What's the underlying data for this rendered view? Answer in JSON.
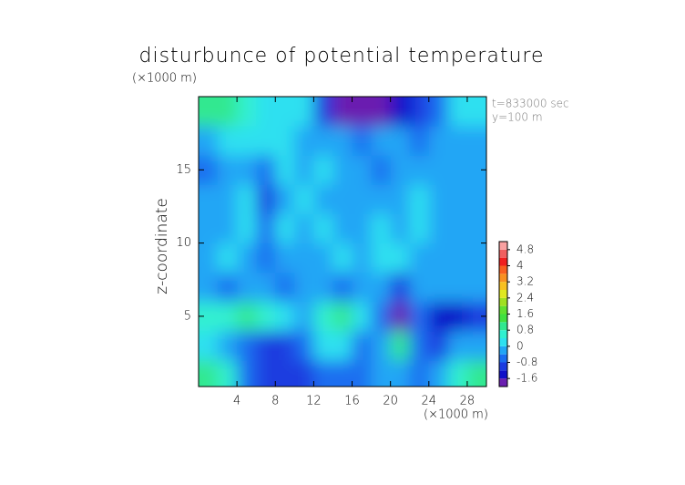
{
  "chart_data": {
    "type": "heatmap",
    "title": "disturbunce of potential temperature",
    "y_unit": "(×1000 m)",
    "x_unit": "(×1000 m)",
    "ylabel": "z-coordinate",
    "annotations": [
      "t=833000 sec",
      "y=100 m"
    ],
    "xlim": [
      0,
      30
    ],
    "ylim": [
      0.2,
      20
    ],
    "xticks": [
      4,
      8,
      12,
      16,
      20,
      24,
      28
    ],
    "yticks": [
      5,
      10,
      15
    ],
    "x": [
      1,
      3,
      5,
      7,
      9,
      11,
      13,
      15,
      17,
      19,
      21,
      23,
      25,
      27,
      29
    ],
    "y": [
      1,
      3,
      5,
      7,
      9,
      11,
      13,
      15,
      17,
      19
    ],
    "z": [
      [
        0.9,
        0.5,
        -0.6,
        -0.9,
        -1.0,
        -1.0,
        -0.6,
        -0.5,
        -0.7,
        -0.4,
        -0.2,
        -0.5,
        -0.4,
        0.6,
        0.9
      ],
      [
        0.2,
        -0.4,
        -0.5,
        -0.8,
        -0.9,
        -0.6,
        0.3,
        0.2,
        -0.5,
        -0.3,
        0.9,
        -0.6,
        -1.2,
        -0.3,
        -0.2
      ],
      [
        0.6,
        0.7,
        0.9,
        0.6,
        0.1,
        -0.3,
        0.5,
        1.0,
        0.2,
        -0.5,
        -1.6,
        -0.6,
        -1.5,
        -1.4,
        -0.8
      ],
      [
        -0.4,
        -0.6,
        -0.3,
        -0.1,
        -0.6,
        -0.4,
        -0.2,
        -0.5,
        -0.3,
        -0.2,
        -1.0,
        -0.3,
        -0.3,
        -0.4,
        -0.4
      ],
      [
        -0.3,
        0.1,
        -0.2,
        -0.7,
        -0.1,
        -0.3,
        -0.1,
        0.0,
        -0.2,
        0.2,
        0.1,
        -0.2,
        -0.3,
        -0.2,
        -0.3
      ],
      [
        -0.1,
        -0.4,
        0.1,
        -0.6,
        0.0,
        -0.4,
        0.1,
        -0.3,
        -0.1,
        0.1,
        -0.3,
        0.1,
        -0.2,
        -0.4,
        -0.2
      ],
      [
        -0.4,
        -0.2,
        0.0,
        -0.8,
        -0.2,
        0.0,
        -0.4,
        -0.2,
        -0.1,
        -0.3,
        -0.2,
        0.0,
        -0.4,
        -0.3,
        -0.3
      ],
      [
        -0.6,
        -0.2,
        -0.1,
        -0.5,
        0.2,
        -0.2,
        0.1,
        -0.4,
        -0.2,
        -0.5,
        -0.3,
        -0.2,
        -0.1,
        -0.3,
        -0.4
      ],
      [
        -0.3,
        0.2,
        0.0,
        0.1,
        0.3,
        -0.3,
        -0.1,
        -0.4,
        -0.5,
        -0.3,
        -0.4,
        -0.5,
        -0.2,
        -0.3,
        -0.1
      ],
      [
        1.0,
        1.0,
        0.8,
        0.4,
        0.2,
        0.3,
        -0.9,
        -1.6,
        -1.6,
        -1.6,
        -1.5,
        -1.2,
        -0.6,
        0.1,
        0.2
      ]
    ],
    "clim": [
      -2,
      5.2
    ],
    "colors": [
      "#6a1fb0",
      "#1010c8",
      "#1a3ce0",
      "#1a6ef0",
      "#22a6f5",
      "#2ee0f0",
      "#30f0d0",
      "#30e890",
      "#40e040",
      "#60e030",
      "#a0e020",
      "#e0e820",
      "#f8c020",
      "#f89020",
      "#f86020",
      "#f02020",
      "#f06060",
      "#f8a0a0"
    ],
    "colorbar_ticks": [
      4.8,
      4,
      3.2,
      2.4,
      1.6,
      0.8,
      0,
      -0.8,
      -1.6
    ]
  }
}
